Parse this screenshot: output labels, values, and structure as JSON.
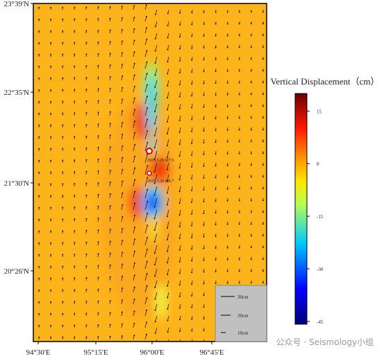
{
  "map": {
    "lat_labels": [
      "23°39'N",
      "22°35'N",
      "21°30'N",
      "20°26'N"
    ],
    "lon_labels": [
      "94°30'E",
      "95°15'E",
      "96°00'E",
      "96°45'E"
    ],
    "annotations": [
      "2025.3.28 M7.9",
      "2025.3.28 M6.7"
    ],
    "scale_labels": [
      "30cm",
      "20cm",
      "10cm"
    ],
    "watermark": "公众号 · Seismology小组"
  },
  "colorbar": {
    "title": "Vertical Displacement（cm）",
    "lim": [
      -45.8,
      20
    ],
    "ticks": [
      15,
      0,
      -15,
      -30,
      -45
    ]
  }
}
